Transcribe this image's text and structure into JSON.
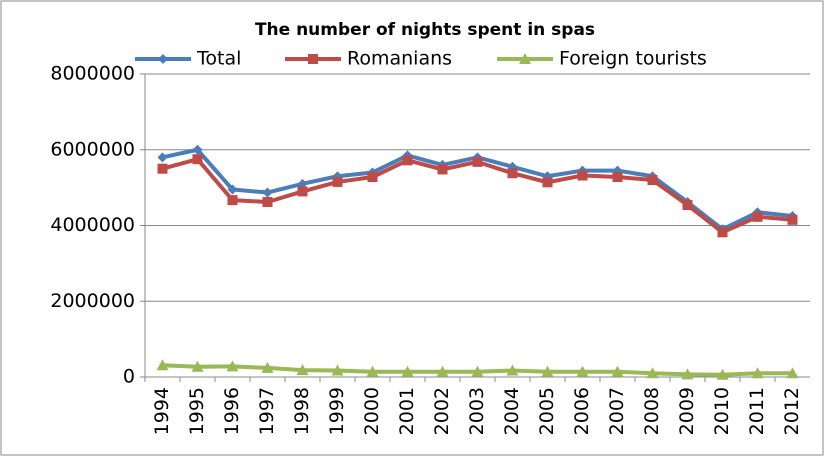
{
  "chart_data": {
    "type": "line",
    "title": "The number of nights spent in spas",
    "categories": [
      "1994",
      "1995",
      "1996",
      "1997",
      "1998",
      "1999",
      "2000",
      "2001",
      "2002",
      "2003",
      "2004",
      "2005",
      "2006",
      "2007",
      "2008",
      "2009",
      "2010",
      "2011",
      "2012"
    ],
    "series": [
      {
        "name": "Total",
        "color": "#4a7ebb",
        "marker": "diamond",
        "values": [
          5800000,
          6000000,
          4950000,
          4870000,
          5100000,
          5300000,
          5400000,
          5850000,
          5600000,
          5800000,
          5550000,
          5300000,
          5450000,
          5450000,
          5300000,
          4620000,
          3900000,
          4350000,
          4250000
        ]
      },
      {
        "name": "Romanians",
        "color": "#be4b48",
        "marker": "square",
        "values": [
          5500000,
          5750000,
          4670000,
          4620000,
          4900000,
          5150000,
          5280000,
          5720000,
          5480000,
          5680000,
          5380000,
          5140000,
          5320000,
          5280000,
          5200000,
          4540000,
          3820000,
          4230000,
          4150000
        ]
      },
      {
        "name": "Foreign tourists",
        "color": "#98b954",
        "marker": "triangle",
        "values": [
          310000,
          270000,
          280000,
          240000,
          180000,
          170000,
          140000,
          140000,
          140000,
          140000,
          170000,
          140000,
          140000,
          140000,
          100000,
          70000,
          60000,
          100000,
          100000
        ]
      }
    ],
    "ylim": [
      0,
      8000000
    ],
    "yticks": [
      0,
      2000000,
      4000000,
      6000000,
      8000000
    ],
    "grid": true,
    "legend": "top"
  }
}
